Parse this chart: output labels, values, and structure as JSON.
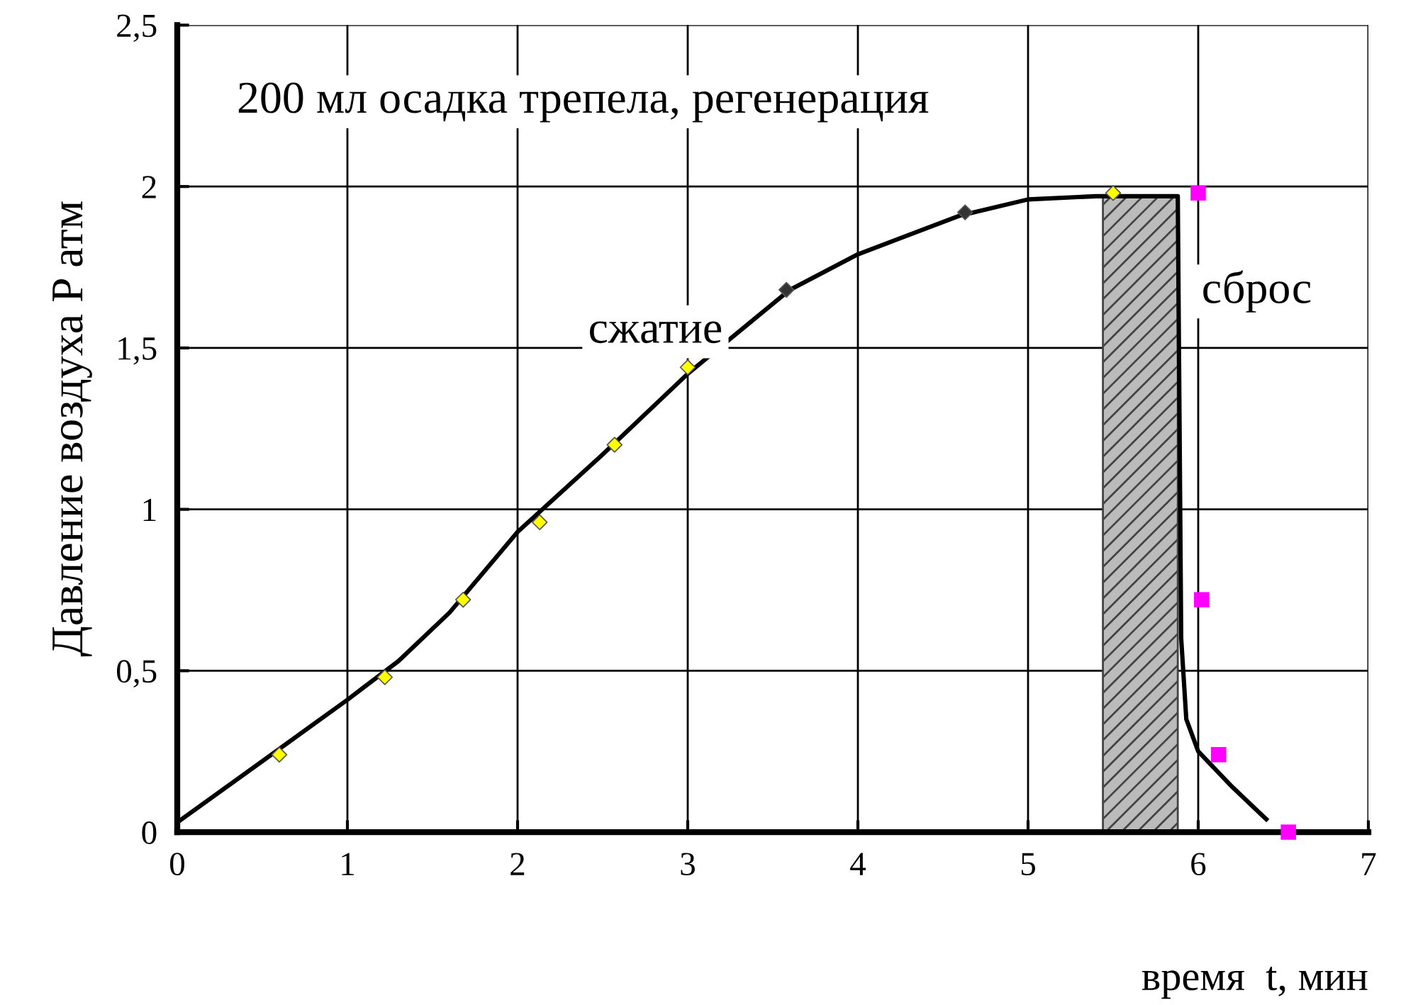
{
  "chart_data": {
    "type": "line",
    "xlabel": "время  t, мин",
    "ylabel": "Давление воздуха P атм",
    "xlim": [
      0,
      7
    ],
    "xticks": [
      0,
      1,
      2,
      3,
      4,
      5,
      6,
      7
    ],
    "ylim": [
      0,
      2.5
    ],
    "yticks": [
      0,
      {
        "value": 0.5,
        "label": "0,5"
      },
      1,
      {
        "value": 1.5,
        "label": "1,5"
      },
      2,
      {
        "value": 2.5,
        "label": "2,5"
      }
    ],
    "grid": true,
    "annotations": [
      "200 мл осадка трепела, регенерация",
      "сжатие",
      "сброс"
    ],
    "bands": [
      {
        "axis": "x",
        "from": 5.44,
        "to": 5.88,
        "color": "#bbbbbb"
      }
    ],
    "series": [
      {
        "type": "line",
        "color": "#000000",
        "marker": "none",
        "line_style": "solid",
        "x": [
          0,
          0.5,
          1,
          1.3,
          1.6,
          2,
          2.5,
          3,
          3.6,
          4,
          4.6,
          5,
          5.4,
          5.88,
          5.9,
          5.93,
          6,
          6.2,
          6.4
        ],
        "values": [
          0.03,
          0.22,
          0.41,
          0.53,
          0.68,
          0.93,
          1.17,
          1.42,
          1.68,
          1.79,
          1.91,
          1.96,
          1.97,
          1.97,
          0.6,
          0.35,
          0.25,
          0.14,
          0.04
        ]
      },
      {
        "type": "scatter",
        "color": "#ffff00",
        "marker": "diamond",
        "x": [
          0.6,
          1.22,
          1.68,
          2.13,
          2.57,
          3.0,
          3.58,
          4.63,
          5.5
        ],
        "values": [
          0.24,
          0.48,
          0.72,
          0.96,
          1.2,
          1.44,
          1.68,
          1.92,
          1.98
        ],
        "colors": [
          "#ffff00",
          "#ffff00",
          "#ffff00",
          "#ffff00",
          "#ffff00",
          "#ffff00",
          "#333333",
          "#333333",
          "#ffff00"
        ]
      },
      {
        "type": "scatter",
        "color": "#ff00ff",
        "marker": "square",
        "x": [
          6.0,
          6.02,
          6.12,
          6.53
        ],
        "values": [
          1.98,
          0.72,
          0.24,
          0.0
        ]
      }
    ]
  }
}
